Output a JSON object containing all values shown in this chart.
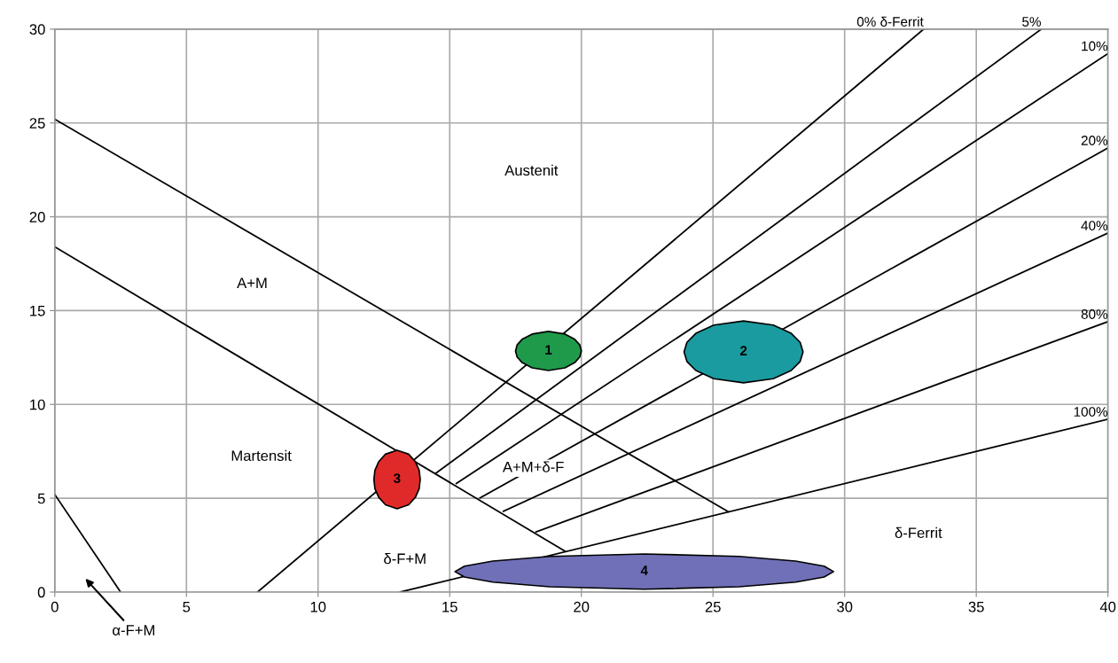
{
  "chart_data": {
    "type": "line",
    "xlim": [
      0,
      40
    ],
    "ylim": [
      0,
      30
    ],
    "xticks": [
      0,
      5,
      10,
      15,
      20,
      25,
      30,
      35,
      40
    ],
    "yticks": [
      0,
      5,
      10,
      15,
      20,
      25,
      30
    ],
    "grid": true,
    "marker": "none",
    "line_style": "solid",
    "series": [
      {
        "color": "#000000",
        "x": [
          0,
          25.58
        ],
        "values": [
          25.2,
          4.28
        ]
      },
      {
        "color": "#000000",
        "x": [
          0,
          19.39
        ],
        "values": [
          18.4,
          2.17
        ]
      },
      {
        "color": "#000000",
        "x": [
          0,
          2.5
        ],
        "values": [
          5.2,
          0
        ]
      },
      {
        "name": "0% δ-Ferrit",
        "color": "#000000",
        "x": [
          7.7,
          33.0
        ],
        "values": [
          0,
          30
        ]
      },
      {
        "name": "5%",
        "color": "#000000",
        "x": [
          14.47,
          37.47
        ],
        "values": [
          6.33,
          30
        ]
      },
      {
        "name": "10%",
        "color": "#000000",
        "x": [
          15.25,
          40
        ],
        "values": [
          5.78,
          28.7
        ]
      },
      {
        "name": "20%",
        "color": "#000000",
        "x": [
          16.15,
          40
        ],
        "values": [
          5.02,
          23.67
        ]
      },
      {
        "name": "40%",
        "color": "#000000",
        "x": [
          17.04,
          40
        ],
        "values": [
          4.31,
          19.13
        ]
      },
      {
        "name": "80%",
        "color": "#000000",
        "x": [
          18.28,
          40
        ],
        "values": [
          3.21,
          14.41
        ]
      },
      {
        "name": "100%",
        "color": "#000000",
        "x": [
          13.12,
          40
        ],
        "values": [
          0,
          9.21
        ]
      },
      {
        "type": "area",
        "name": "1",
        "color": "#1f9a4a",
        "x": [
          17.5,
          17.56,
          17.75,
          18.13,
          18.75,
          19.38,
          19.75,
          19.94,
          20.0,
          19.94,
          19.75,
          19.38,
          18.75,
          18.13,
          17.75,
          17.56
        ],
        "values": [
          12.85,
          13.17,
          13.47,
          13.75,
          13.89,
          13.75,
          13.47,
          13.17,
          12.85,
          12.53,
          12.23,
          11.95,
          11.81,
          11.95,
          12.23,
          12.53
        ]
      },
      {
        "type": "area",
        "name": "2",
        "color": "#1a9ba0",
        "x": [
          23.9,
          24.01,
          24.35,
          25.03,
          26.16,
          27.29,
          27.97,
          28.31,
          28.42,
          28.31,
          27.97,
          27.29,
          26.16,
          25.03,
          24.35,
          24.01
        ],
        "values": [
          12.8,
          13.31,
          13.79,
          14.23,
          14.45,
          14.23,
          13.79,
          13.31,
          12.8,
          12.29,
          11.81,
          11.37,
          11.15,
          11.37,
          11.81,
          12.29
        ]
      },
      {
        "type": "area",
        "name": "3",
        "color": "#e02a2a",
        "x": [
          12.12,
          12.16,
          12.3,
          12.56,
          13.0,
          13.44,
          13.7,
          13.84,
          13.88,
          13.84,
          13.7,
          13.44,
          13.0,
          12.56,
          12.3,
          12.16
        ],
        "values": [
          6,
          6.49,
          6.94,
          7.35,
          7.56,
          7.35,
          6.94,
          6.49,
          6,
          5.51,
          5.06,
          4.65,
          4.44,
          4.65,
          5.06,
          5.51
        ]
      },
      {
        "type": "area",
        "name": "4",
        "color": "#7070b8",
        "x": [
          15.2,
          15.56,
          16.64,
          18.8,
          22.39,
          25.99,
          28.14,
          29.22,
          29.58,
          29.22,
          28.14,
          25.99,
          22.39,
          18.8,
          16.64,
          15.56
        ],
        "values": [
          1.09,
          1.38,
          1.65,
          1.9,
          2.03,
          1.9,
          1.65,
          1.38,
          1.09,
          0.8,
          0.53,
          0.28,
          0.15,
          0.28,
          0.53,
          0.8
        ]
      }
    ],
    "annotations": [
      "Austenit",
      "A+M",
      "Martensit",
      "A+M+δ-F",
      "δ-F+M",
      "δ-Ferrit",
      "α-F+M"
    ]
  }
}
